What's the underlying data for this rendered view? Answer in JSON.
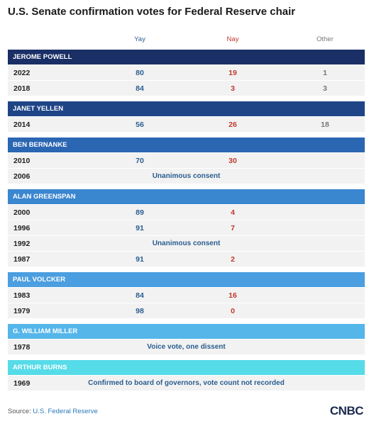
{
  "chart_data": {
    "type": "table",
    "title": "U.S. Senate confirmation votes for Federal Reserve chair",
    "columns": [
      "Yay",
      "Nay",
      "Other"
    ],
    "groups": [
      {
        "name": "JEROME POWELL",
        "color": "#1a2f66",
        "rows": [
          {
            "year": "2022",
            "yay": "80",
            "nay": "19",
            "other": "1"
          },
          {
            "year": "2018",
            "yay": "84",
            "nay": "3",
            "other": "3"
          }
        ]
      },
      {
        "name": "JANET YELLEN",
        "color": "#1f4587",
        "rows": [
          {
            "year": "2014",
            "yay": "56",
            "nay": "26",
            "other": "18"
          }
        ]
      },
      {
        "name": "BEN BERNANKE",
        "color": "#2b66b3",
        "rows": [
          {
            "year": "2010",
            "yay": "70",
            "nay": "30",
            "other": ""
          },
          {
            "year": "2006",
            "note": "Unanimous consent"
          }
        ]
      },
      {
        "name": "ALAN GREENSPAN",
        "color": "#3a86cf",
        "rows": [
          {
            "year": "2000",
            "yay": "89",
            "nay": "4",
            "other": ""
          },
          {
            "year": "1996",
            "yay": "91",
            "nay": "7",
            "other": ""
          },
          {
            "year": "1992",
            "note": "Unanimous consent"
          },
          {
            "year": "1987",
            "yay": "91",
            "nay": "2",
            "other": ""
          }
        ]
      },
      {
        "name": "PAUL VOLCKER",
        "color": "#4b9ee0",
        "rows": [
          {
            "year": "1983",
            "yay": "84",
            "nay": "16",
            "other": ""
          },
          {
            "year": "1979",
            "yay": "98",
            "nay": "0",
            "other": ""
          }
        ]
      },
      {
        "name": "G. WILLIAM MILLER",
        "color": "#55b6ea",
        "rows": [
          {
            "year": "1978",
            "note": "Voice vote, one dissent"
          }
        ]
      },
      {
        "name": "ARTHUR BURNS",
        "color": "#56dbe8",
        "rows": [
          {
            "year": "1969",
            "note": "Confirmed to board of governors, vote count not recorded"
          }
        ]
      }
    ]
  },
  "footer": {
    "source_label": "Source:",
    "source_value": "U.S. Federal Reserve",
    "logo": "CNBC"
  }
}
